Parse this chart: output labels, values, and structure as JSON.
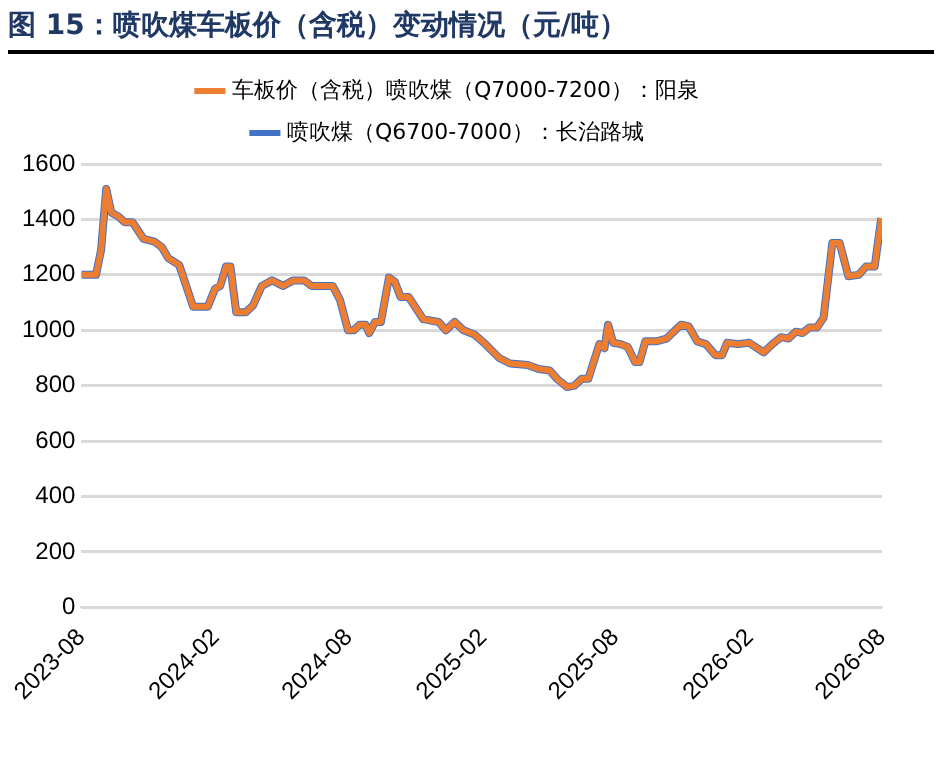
{
  "chart_data": {
    "type": "line",
    "title": "图 15：喷吹煤车板价（含税）变动情况（元/吨）",
    "x": [
      "2023-08-01",
      "2023-08-21",
      "2023-08-28",
      "2023-09-04",
      "2023-09-11",
      "2023-09-21",
      "2023-09-29",
      "2023-10-10",
      "2023-10-25",
      "2023-11-09",
      "2023-11-19",
      "2023-11-28",
      "2023-12-13",
      "2024-01-01",
      "2024-01-21",
      "2024-01-31",
      "2024-02-07",
      "2024-02-15",
      "2024-02-21",
      "2024-02-29",
      "2024-03-13",
      "2024-03-23",
      "2024-04-04",
      "2024-04-18",
      "2024-05-03",
      "2024-05-17",
      "2024-06-01",
      "2024-06-11",
      "2024-07-10",
      "2024-07-20",
      "2024-07-31",
      "2024-08-08",
      "2024-08-16",
      "2024-08-24",
      "2024-08-29",
      "2024-09-06",
      "2024-09-14",
      "2024-09-25",
      "2024-10-03",
      "2024-10-11",
      "2024-10-22",
      "2024-11-11",
      "2024-12-02",
      "2024-12-12",
      "2024-12-24",
      "2025-01-05",
      "2025-01-20",
      "2025-02-04",
      "2025-02-23",
      "2025-03-10",
      "2025-04-03",
      "2025-04-18",
      "2025-05-03",
      "2025-05-13",
      "2025-05-27",
      "2025-06-06",
      "2025-06-16",
      "2025-06-25",
      "2025-07-10",
      "2025-07-17",
      "2025-07-22",
      "2025-07-29",
      "2025-08-08",
      "2025-08-18",
      "2025-08-28",
      "2025-09-03",
      "2025-09-11",
      "2025-09-26",
      "2025-10-10",
      "2025-10-20",
      "2025-10-30",
      "2025-11-09",
      "2025-11-21",
      "2025-12-03",
      "2025-12-16",
      "2025-12-25",
      "2026-01-01",
      "2026-01-16",
      "2026-01-31",
      "2026-02-20",
      "2026-03-04",
      "2026-03-16",
      "2026-03-26",
      "2026-04-05",
      "2026-04-14",
      "2026-04-24",
      "2026-05-04",
      "2026-05-13",
      "2026-05-25",
      "2026-06-04",
      "2026-06-16",
      "2026-06-30",
      "2026-07-10",
      "2026-07-22",
      "2026-07-31"
    ],
    "series": [
      {
        "name": "喷吹煤（Q6700-7000）：长治路城",
        "color": "#4472c4",
        "values": [
          1200,
          1200,
          1290,
          1510,
          1425,
          1410,
          1390,
          1390,
          1330,
          1320,
          1300,
          1260,
          1235,
          1085,
          1085,
          1150,
          1160,
          1230,
          1230,
          1065,
          1065,
          1090,
          1160,
          1180,
          1160,
          1180,
          1180,
          1160,
          1160,
          1110,
          1000,
          1000,
          1020,
          1020,
          990,
          1030,
          1030,
          1190,
          1175,
          1120,
          1120,
          1040,
          1030,
          1000,
          1030,
          1000,
          985,
          950,
          900,
          880,
          875,
          860,
          855,
          825,
          795,
          800,
          825,
          825,
          950,
          935,
          1020,
          955,
          950,
          940,
          885,
          885,
          960,
          960,
          970,
          995,
          1020,
          1015,
          960,
          950,
          910,
          910,
          955,
          950,
          955,
          920,
          950,
          975,
          970,
          995,
          990,
          1010,
          1010,
          1045,
          1315,
          1315,
          1195,
          1200,
          1230,
          1230,
          1405
        ]
      },
      {
        "name": "车板价（含税）喷吹煤（Q7000-7200）：阳泉",
        "color": "#ed7d31",
        "values": [
          1200,
          1200,
          1290,
          1510,
          1425,
          1410,
          1390,
          1390,
          1330,
          1320,
          1300,
          1260,
          1235,
          1085,
          1085,
          1150,
          1160,
          1230,
          1230,
          1065,
          1065,
          1090,
          1160,
          1180,
          1160,
          1180,
          1180,
          1160,
          1160,
          1110,
          1000,
          1000,
          1020,
          1020,
          990,
          1030,
          1030,
          1190,
          1175,
          1120,
          1120,
          1040,
          1030,
          1000,
          1030,
          1000,
          985,
          950,
          900,
          880,
          875,
          860,
          855,
          825,
          795,
          800,
          825,
          825,
          950,
          935,
          1020,
          955,
          950,
          940,
          885,
          885,
          960,
          960,
          970,
          995,
          1020,
          1015,
          960,
          950,
          910,
          910,
          955,
          950,
          955,
          920,
          950,
          975,
          970,
          995,
          990,
          1010,
          1010,
          1045,
          1315,
          1315,
          1195,
          1200,
          1230,
          1230,
          1405
        ]
      }
    ],
    "xlim": [
      "2023-08",
      "2026-08"
    ],
    "xticks": [
      "2023-08",
      "2024-02",
      "2024-08",
      "2025-02",
      "2025-08",
      "2026-02",
      "2026-08"
    ],
    "ylim": [
      0,
      1600
    ],
    "yticks": [
      0,
      200,
      400,
      600,
      800,
      1000,
      1200,
      1400,
      1600
    ],
    "grid": "y",
    "legend": "top",
    "marker": "none",
    "line_style": "solid"
  }
}
